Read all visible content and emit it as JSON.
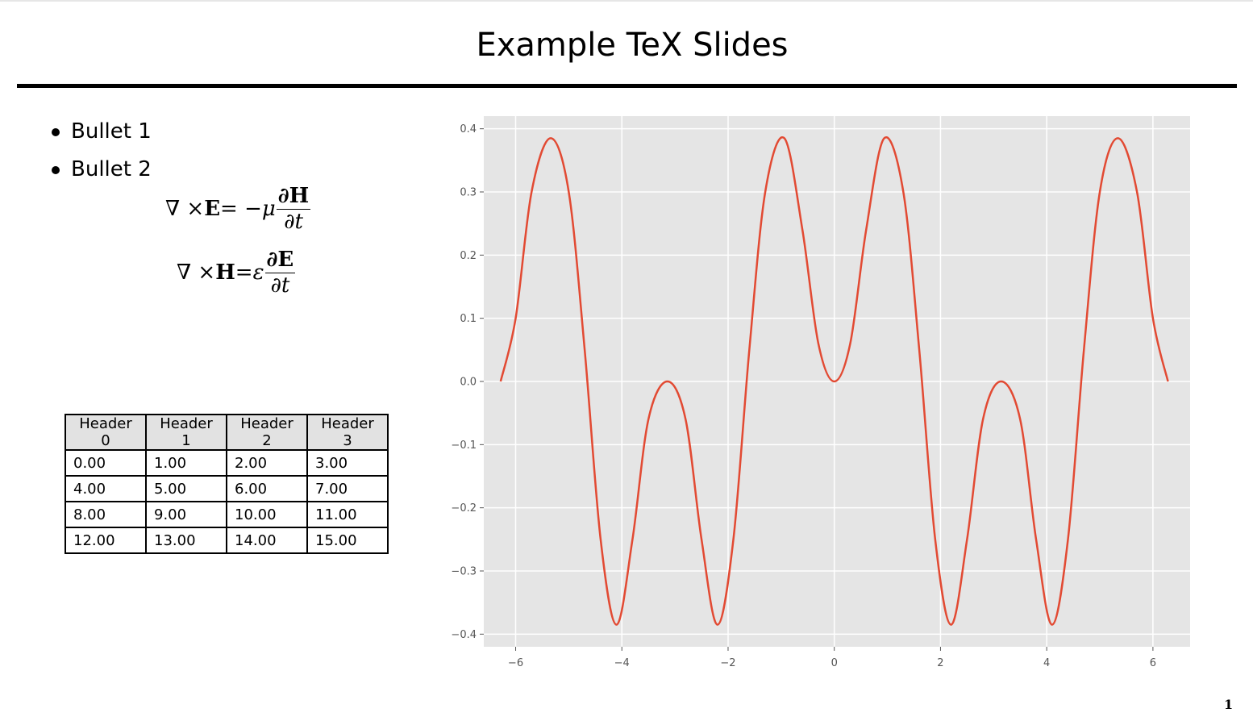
{
  "slide": {
    "title": "Example TeX Slides",
    "page_number": "1",
    "bullets": [
      "Bullet 1",
      "Bullet 2"
    ],
    "equations": [
      {
        "lhs": "∇ × ",
        "lhs_bold": "E",
        "rel": " = −",
        "coef": "μ",
        "num": "∂H",
        "den": "∂t"
      },
      {
        "lhs": "∇ × ",
        "lhs_bold": "H",
        "rel": " = ",
        "coef": "ε",
        "num": "∂E",
        "den": "∂t"
      }
    ]
  },
  "table": {
    "headers": [
      "Header 0",
      "Header 1",
      "Header 2",
      "Header 3"
    ],
    "rows": [
      [
        "0.00",
        "1.00",
        "2.00",
        "3.00"
      ],
      [
        "4.00",
        "5.00",
        "6.00",
        "7.00"
      ],
      [
        "8.00",
        "9.00",
        "10.00",
        "11.00"
      ],
      [
        "12.00",
        "13.00",
        "14.00",
        "15.00"
      ]
    ]
  },
  "chart_data": {
    "type": "line",
    "title": "",
    "xlabel": "",
    "ylabel": "",
    "xlim": [
      -6.6,
      6.7
    ],
    "ylim": [
      -0.42,
      0.42
    ],
    "xticks": [
      -6,
      -4,
      -2,
      0,
      2,
      4,
      6
    ],
    "xtick_labels": [
      "−6",
      "−4",
      "−2",
      "0",
      "2",
      "4",
      "6"
    ],
    "yticks": [
      -0.4,
      -0.3,
      -0.2,
      -0.1,
      0.0,
      0.1,
      0.2,
      0.3,
      0.4
    ],
    "ytick_labels": [
      "−0.4",
      "−0.3",
      "−0.2",
      "−0.1",
      "0.0",
      "0.1",
      "0.2",
      "0.3",
      "0.4"
    ],
    "grid": true,
    "colors": {
      "line": "#e24a33",
      "background": "#e5e5e5",
      "grid": "#ffffff"
    },
    "series": [
      {
        "x": [
          -6.2832,
          -6.0,
          -5.7,
          -5.34,
          -5.0,
          -4.7,
          -4.4,
          -4.1,
          -3.8,
          -3.5,
          -3.1416,
          -2.8,
          -2.5,
          -2.2,
          -1.9,
          -1.6,
          -1.3,
          -0.94,
          -0.6,
          -0.3,
          0.0,
          0.3,
          0.6,
          0.94,
          1.3,
          1.6,
          1.9,
          2.2,
          2.5,
          2.8,
          3.1416,
          3.5,
          3.8,
          4.1,
          4.4,
          4.7,
          5.0,
          5.34,
          5.7,
          6.0,
          6.2832
        ],
        "y": [
          0.0,
          0.1,
          0.3,
          0.385,
          0.3,
          0.05,
          -0.25,
          -0.385,
          -0.25,
          -0.06,
          0.0,
          -0.06,
          -0.25,
          -0.385,
          -0.25,
          0.05,
          0.3,
          0.385,
          0.24,
          0.06,
          0.0,
          0.06,
          0.24,
          0.385,
          0.3,
          0.05,
          -0.25,
          -0.385,
          -0.25,
          -0.06,
          0.0,
          -0.06,
          -0.25,
          -0.385,
          -0.25,
          0.05,
          0.3,
          0.385,
          0.3,
          0.1,
          0.0
        ]
      }
    ]
  }
}
